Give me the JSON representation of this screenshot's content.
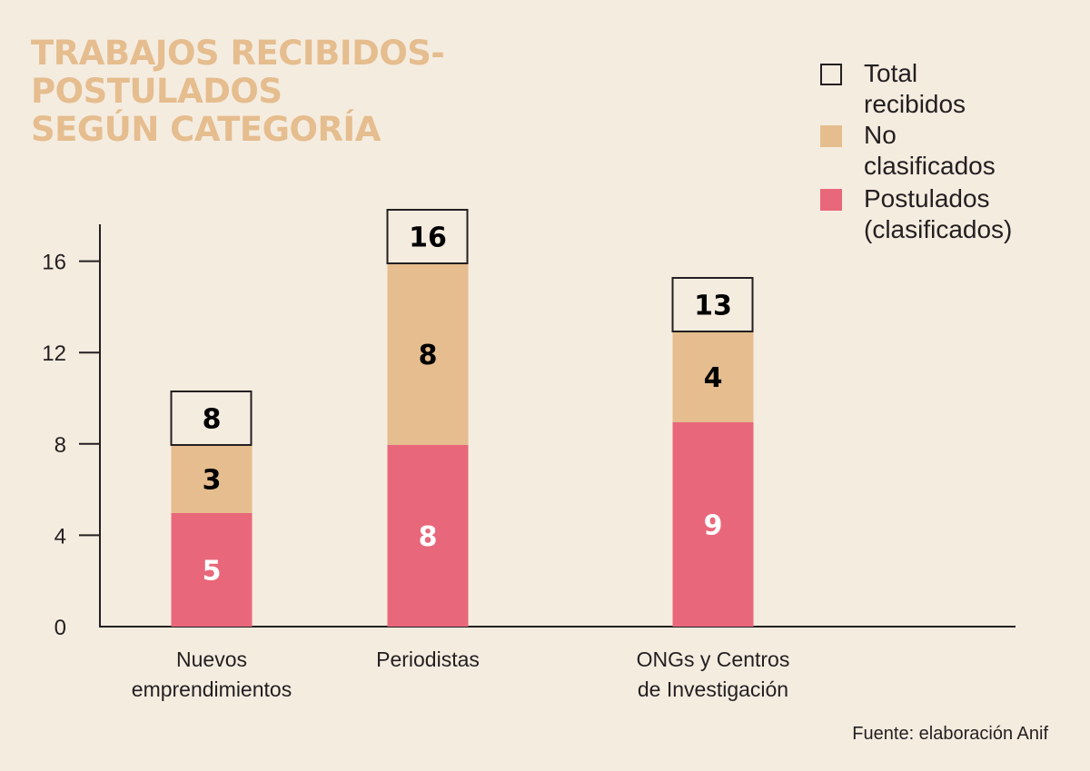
{
  "chart_data": {
    "type": "bar",
    "stacked": true,
    "title": "TRABAJOS RECIBIDOS-\nPOSTULADOS\nSEGÚN CATEGORÍA",
    "xlabel": "",
    "ylabel": "",
    "ylim": [
      0,
      17
    ],
    "yticks": [
      0,
      4,
      8,
      12,
      16
    ],
    "grid": false,
    "legend_position": "top-right",
    "categories": [
      "Nuevos\nemprendimientos",
      "Periodistas",
      "ONGs y Centros\nde Investigación"
    ],
    "series": [
      {
        "name": "Postulados\n(clasificados)",
        "key": "postulados",
        "color": "#e8677a",
        "label_color": "#ffffff",
        "values": [
          5,
          8,
          9
        ]
      },
      {
        "name": "No clasificados",
        "key": "no_clasificados",
        "color": "#e5bd8e",
        "label_color": "#000000",
        "values": [
          3,
          8,
          4
        ]
      }
    ],
    "totals": {
      "name": "Total recibidos",
      "values": [
        8,
        16,
        13
      ],
      "border_color": "#231f20"
    },
    "source": "Fuente: elaboración Anif"
  },
  "legend": [
    {
      "label": "Total recibidos",
      "type": "outline",
      "color": "#231f20"
    },
    {
      "label": "No clasificados",
      "type": "fill",
      "color": "#e5bd8e"
    },
    {
      "label": "Postulados\n(clasificados)",
      "type": "fill",
      "color": "#e8677a"
    }
  ],
  "colors": {
    "background": "#f5ece0",
    "title": "#e5bd8e",
    "axis": "#231f20"
  }
}
